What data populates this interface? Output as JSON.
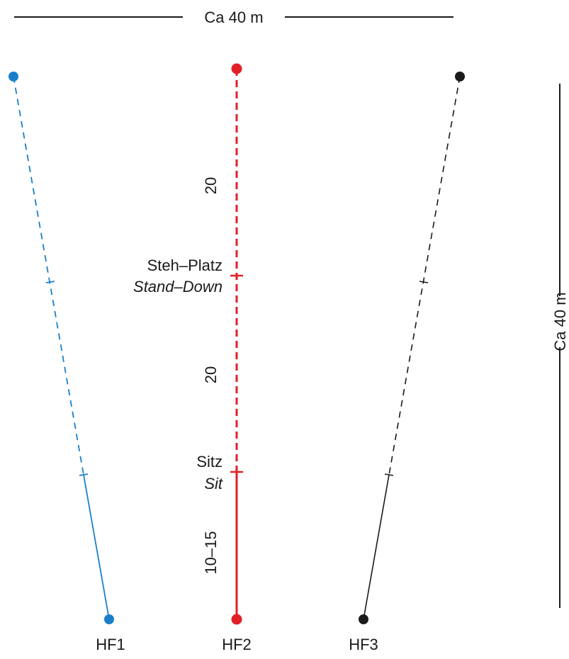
{
  "width_label": "Ca 40 m",
  "height_label": "Ca 40 m",
  "distances": {
    "top": "20",
    "middle": "20",
    "bottom": "10–15"
  },
  "positions": {
    "stand_de": "Steh–Platz",
    "stand_en": "Stand–Down",
    "sit_de": "Sitz",
    "sit_en": "Sit"
  },
  "lanes": [
    {
      "name": "HF1",
      "color": "#1a7fc8"
    },
    {
      "name": "HF2",
      "color": "#e21f26"
    },
    {
      "name": "HF3",
      "color": "#1a1a1a"
    }
  ]
}
